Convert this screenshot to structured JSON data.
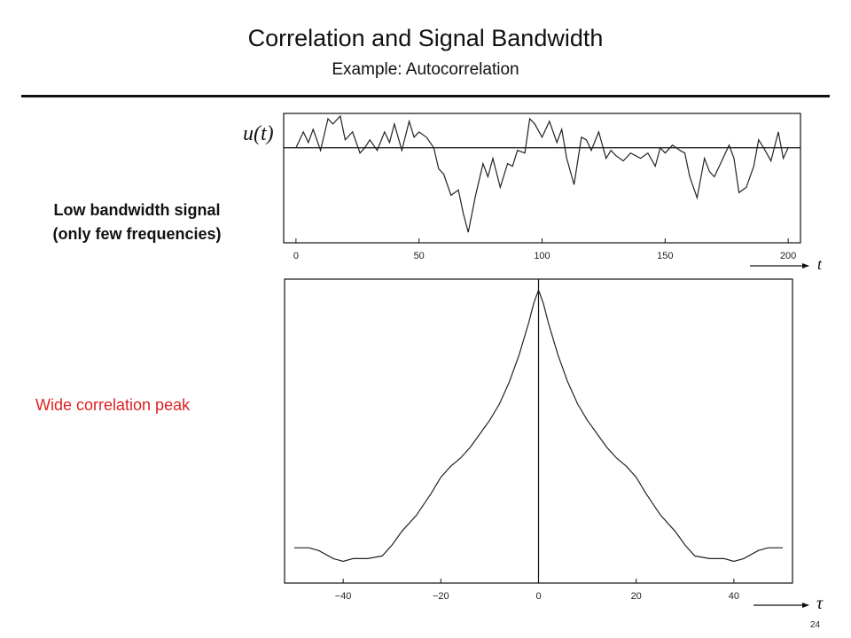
{
  "slide": {
    "title": "Correlation and Signal Bandwidth",
    "subtitle": "Example:  Autocorrelation",
    "label_signal_line1": "Low bandwidth signal",
    "label_signal_line2": "(only few frequencies)",
    "label_peak": "Wide correlation peak",
    "label_peak_color": "#e02020",
    "page_number": "24"
  },
  "chart_data": [
    {
      "type": "line",
      "ylabel": "u(t)",
      "xlabel": "t",
      "xlim": [
        -5,
        205
      ],
      "ylim": [
        -1.8,
        0.65
      ],
      "xticks": [
        0,
        50,
        100,
        150,
        200
      ],
      "xtick_labels": [
        "0",
        "50",
        "100",
        "150",
        "200"
      ],
      "hline_y": 0,
      "x": [
        0,
        3,
        5,
        7,
        10,
        13,
        15,
        18,
        20,
        23,
        26,
        28,
        30,
        33,
        36,
        38,
        40,
        43,
        46,
        48,
        50,
        53,
        56,
        58,
        60,
        63,
        66,
        68,
        70,
        73,
        76,
        78,
        80,
        83,
        86,
        88,
        90,
        93,
        95,
        97,
        100,
        103,
        106,
        108,
        110,
        113,
        116,
        118,
        120,
        123,
        126,
        128,
        130,
        133,
        136,
        138,
        140,
        143,
        146,
        148,
        150,
        153,
        156,
        158,
        160,
        163,
        166,
        168,
        170,
        173,
        176,
        178,
        180,
        183,
        186,
        188,
        190,
        193,
        196,
        198,
        200
      ],
      "y": [
        0.0,
        0.3,
        0.1,
        0.35,
        -0.05,
        0.55,
        0.45,
        0.6,
        0.15,
        0.3,
        -0.1,
        0.0,
        0.15,
        -0.05,
        0.3,
        0.1,
        0.45,
        -0.05,
        0.5,
        0.2,
        0.3,
        0.2,
        0.0,
        -0.4,
        -0.5,
        -0.9,
        -0.8,
        -1.25,
        -1.6,
        -0.9,
        -0.3,
        -0.55,
        -0.2,
        -0.75,
        -0.3,
        -0.35,
        -0.05,
        -0.1,
        0.55,
        0.45,
        0.2,
        0.5,
        0.1,
        0.35,
        -0.2,
        -0.7,
        0.2,
        0.15,
        -0.05,
        0.3,
        -0.2,
        -0.05,
        -0.15,
        -0.25,
        -0.1,
        -0.15,
        -0.2,
        -0.1,
        -0.35,
        0.0,
        -0.1,
        0.05,
        -0.05,
        -0.1,
        -0.55,
        -0.95,
        -0.2,
        -0.45,
        -0.55,
        -0.25,
        0.05,
        -0.2,
        -0.85,
        -0.75,
        -0.35,
        0.15,
        0.0,
        -0.25,
        0.3,
        -0.2,
        0.0
      ]
    },
    {
      "type": "line",
      "xlabel": "τ",
      "xlim": [
        -52,
        52
      ],
      "ylim": [
        -0.08,
        1.04
      ],
      "xticks": [
        -40,
        -20,
        0,
        20,
        40
      ],
      "xtick_labels": [
        "−40",
        "−20",
        "0",
        "20",
        "40"
      ],
      "vline_x": 0,
      "x": [
        -50,
        -47,
        -45,
        -42,
        -40,
        -38,
        -35,
        -32,
        -30,
        -28,
        -25,
        -22,
        -20,
        -18,
        -16,
        -14,
        -12,
        -10,
        -8,
        -6,
        -4,
        -2,
        -1,
        0,
        1,
        2,
        4,
        6,
        8,
        10,
        12,
        14,
        16,
        18,
        20,
        22,
        25,
        28,
        30,
        32,
        35,
        38,
        40,
        42,
        45,
        47,
        50
      ],
      "y": [
        0.05,
        0.05,
        0.04,
        0.01,
        0.0,
        0.01,
        0.01,
        0.02,
        0.06,
        0.11,
        0.17,
        0.25,
        0.31,
        0.35,
        0.38,
        0.42,
        0.47,
        0.52,
        0.58,
        0.66,
        0.76,
        0.88,
        0.95,
        1.0,
        0.95,
        0.88,
        0.76,
        0.66,
        0.58,
        0.52,
        0.47,
        0.42,
        0.38,
        0.35,
        0.31,
        0.25,
        0.17,
        0.11,
        0.06,
        0.02,
        0.01,
        0.01,
        0.0,
        0.01,
        0.04,
        0.05,
        0.05
      ]
    }
  ]
}
